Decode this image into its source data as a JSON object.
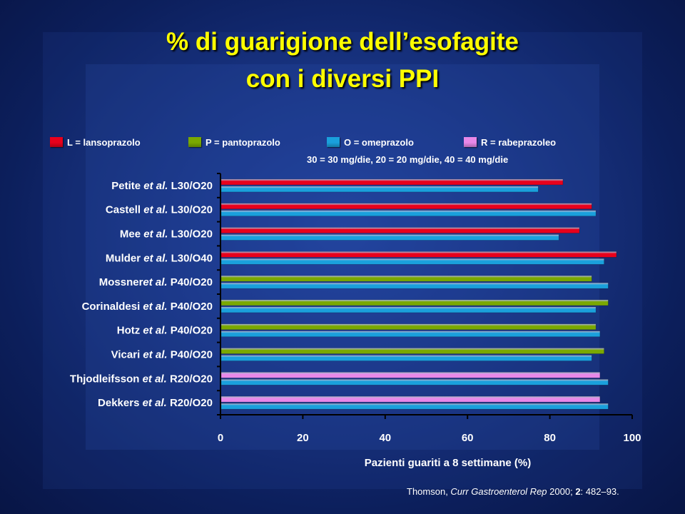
{
  "slide": {
    "title_line1": "% di guarigione dell’esofagite",
    "title_line2": "con i diversi PPI",
    "dose_note": "30 = 30 mg/die, 20 = 20 mg/die, 40 = 40 mg/die",
    "source_prefix": "Thomson, ",
    "source_journal": "Curr Gastroenterol Rep",
    "source_year": " 2000; ",
    "source_volume": "2",
    "source_pages": ": 482–93."
  },
  "legend": [
    {
      "label": "L = lansoprazolo",
      "color": "#e8001c"
    },
    {
      "label": "P = pantoprazolo",
      "color": "#7aa800"
    },
    {
      "label": "O = omeprazolo",
      "color": "#1aa0dc"
    },
    {
      "label": "R = rabeprazoleo",
      "color": "#e888e8"
    }
  ],
  "chart_data": {
    "type": "bar",
    "orientation": "horizontal",
    "xlabel": "Pazienti guariti a 8 settimane (%)",
    "xlim": [
      0,
      100
    ],
    "xticks": [
      "0",
      "20",
      "40",
      "60",
      "80",
      "100"
    ],
    "grid": false,
    "legend_position": "top",
    "categories": [
      {
        "author": "Petite",
        "etal": " et al.",
        "code": " L30/O20",
        "first": "L",
        "first_value": 83,
        "second_value": 77
      },
      {
        "author": "Castell",
        "etal": " et al.",
        "code": " L30/O20",
        "first": "L",
        "first_value": 90,
        "second_value": 91
      },
      {
        "author": "Mee",
        "etal": " et al.",
        "code": " L30/O20",
        "first": "L",
        "first_value": 87,
        "second_value": 82
      },
      {
        "author": "Mulder",
        "etal": " et al.",
        "code": " L30/O40",
        "first": "L",
        "first_value": 96,
        "second_value": 93
      },
      {
        "author": "Mossner",
        "etal": "et al.",
        "code": " P40/O20",
        "first": "P",
        "first_value": 90,
        "second_value": 94
      },
      {
        "author": "Corinaldesi",
        "etal": " et al.",
        "code": " P40/O20",
        "first": "P",
        "first_value": 94,
        "second_value": 91
      },
      {
        "author": "Hotz",
        "etal": " et al.",
        "code": " P40/O20",
        "first": "P",
        "first_value": 91,
        "second_value": 92
      },
      {
        "author": "Vicari",
        "etal": " et al.",
        "code": " P40/O20",
        "first": "P",
        "first_value": 93,
        "second_value": 90
      },
      {
        "author": "Thjodleifsson",
        "etal": " et al.",
        "code": " R20/O20",
        "first": "R",
        "first_value": 92,
        "second_value": 94
      },
      {
        "author": "Dekkers",
        "etal": " et al.",
        "code": " R20/O20",
        "first": "R",
        "first_value": 92,
        "second_value": 94
      }
    ],
    "colors": {
      "L": "#e8001c",
      "P": "#7aa800",
      "O": "#1aa0dc",
      "R": "#e888e8"
    }
  }
}
